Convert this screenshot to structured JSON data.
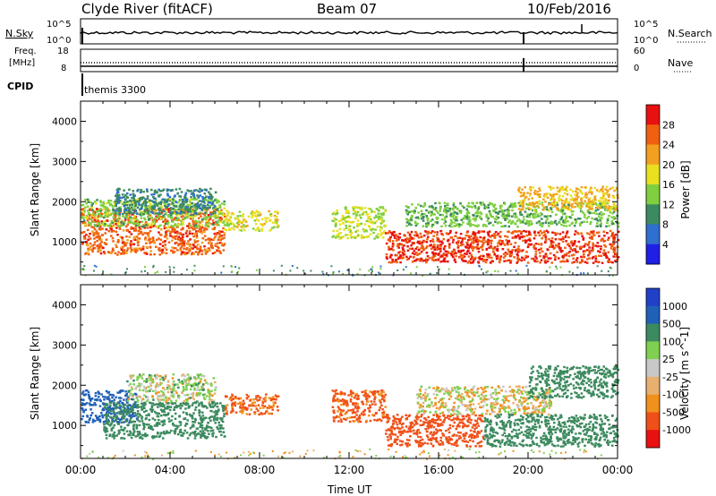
{
  "header": {
    "station": "Clyde River (fitACF)",
    "beam": "Beam 07",
    "date": "10/Feb/2016"
  },
  "strip_noise": {
    "left_label": "N.Sky",
    "right_label": "N.Search",
    "left_ticks": [
      "10^5",
      "10^0"
    ],
    "right_ticks": [
      "10^5",
      "10^0"
    ]
  },
  "strip_freq": {
    "left_label_1": "Freq.",
    "left_label_2": "[MHz]",
    "right_label": "Nave",
    "left_ticks": [
      "18",
      "8"
    ],
    "right_ticks": [
      "60",
      "0"
    ]
  },
  "cpid": {
    "label": "CPID",
    "value": "themis 3300"
  },
  "axis": {
    "xlabel": "Time UT",
    "ylabel": "Slant Range [km]"
  },
  "colors": {
    "power": [
      "#1f1fe6",
      "#2f6fd0",
      "#3c8a5f",
      "#7fcf3f",
      "#e8e020",
      "#f2a020",
      "#f06010",
      "#e81010"
    ],
    "velocity": [
      "#e81010",
      "#f05018",
      "#f2901c",
      "#e8b070",
      "#c8c8c8",
      "#7fd050",
      "#3c8a5f",
      "#2060b8",
      "#2040c8"
    ]
  },
  "chart_data": {
    "type": "heatmap",
    "x": {
      "range": [
        0,
        24
      ],
      "units": "hours UT",
      "ticks": [
        "00:00",
        "04:00",
        "08:00",
        "12:00",
        "16:00",
        "20:00",
        "00:00"
      ]
    },
    "y": {
      "range": [
        180,
        4500
      ],
      "units": "km",
      "ticks": [
        "1000",
        "2000",
        "3000",
        "4000"
      ]
    },
    "panels": [
      {
        "name": "Power",
        "colorbar_label": "Power [dB]",
        "colorbar_ticks": [
          "4",
          "8",
          "12",
          "16",
          "20",
          "24",
          "28"
        ],
        "range": [
          0,
          32
        ],
        "regions": [
          {
            "t": [
              0.0,
              6.4
            ],
            "r": [
              700,
              1850
            ],
            "level": 26
          },
          {
            "t": [
              0.0,
              6.4
            ],
            "r": [
              1400,
              2100
            ],
            "level": 14
          },
          {
            "t": [
              1.5,
              6.0
            ],
            "r": [
              1700,
              2350
            ],
            "level": 9
          },
          {
            "t": [
              6.4,
              8.8
            ],
            "r": [
              1300,
              1800
            ],
            "level": 18
          },
          {
            "t": [
              11.2,
              13.6
            ],
            "r": [
              1100,
              1900
            ],
            "level": 16
          },
          {
            "t": [
              13.6,
              24.0
            ],
            "r": [
              500,
              1300
            ],
            "level": 28
          },
          {
            "t": [
              14.5,
              24.0
            ],
            "r": [
              1400,
              2000
            ],
            "level": 13
          },
          {
            "t": [
              19.5,
              24.0
            ],
            "r": [
              1800,
              2400
            ],
            "level": 21
          }
        ]
      },
      {
        "name": "Velocity",
        "colorbar_label": "Velocity [m s^-1]",
        "colorbar_ticks": [
          "1000",
          "500",
          "100",
          "25",
          "-25",
          "-100",
          "-500",
          "-1000"
        ],
        "range": [
          -1000,
          1000
        ],
        "regions": [
          {
            "t": [
              0.0,
              2.5
            ],
            "r": [
              1100,
              1900
            ],
            "level": 600
          },
          {
            "t": [
              1.0,
              6.4
            ],
            "r": [
              700,
              1600
            ],
            "level": 200
          },
          {
            "t": [
              2.0,
              6.0
            ],
            "r": [
              1600,
              2300
            ],
            "level": 40
          },
          {
            "t": [
              6.4,
              8.8
            ],
            "r": [
              1300,
              1800
            ],
            "level": -120
          },
          {
            "t": [
              11.2,
              13.6
            ],
            "r": [
              1100,
              1900
            ],
            "level": -150
          },
          {
            "t": [
              13.6,
              18.0
            ],
            "r": [
              500,
              1300
            ],
            "level": -200
          },
          {
            "t": [
              15.0,
              21.0
            ],
            "r": [
              1300,
              2000
            ],
            "level": 0
          },
          {
            "t": [
              18.0,
              24.0
            ],
            "r": [
              500,
              1300
            ],
            "level": 200
          },
          {
            "t": [
              20.0,
              24.0
            ],
            "r": [
              1700,
              2500
            ],
            "level": 200
          }
        ]
      }
    ]
  }
}
